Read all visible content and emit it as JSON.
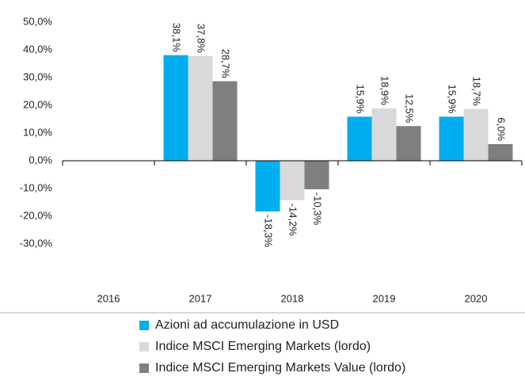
{
  "chart_data": {
    "type": "bar",
    "categories": [
      "2016",
      "2017",
      "2018",
      "2019",
      "2020"
    ],
    "series": [
      {
        "name": "Azioni ad accumulazione in USD",
        "color": "#00aeef",
        "values": [
          null,
          38.1,
          -18.3,
          15.9,
          15.9
        ],
        "value_labels": [
          null,
          "38,1%",
          "-18,3%",
          "15,9%",
          "15,9%"
        ]
      },
      {
        "name": "Indice MSCI Emerging Markets (lordo)",
        "color": "#d9d9d9",
        "values": [
          null,
          37.8,
          -14.2,
          18.9,
          18.7
        ],
        "value_labels": [
          null,
          "37,8%",
          "-14,2%",
          "18,9%",
          "18,7%"
        ]
      },
      {
        "name": "Indice MSCI Emerging Markets Value (lordo)",
        "color": "#7f7f7f",
        "values": [
          null,
          28.7,
          -10.3,
          12.5,
          6.0
        ],
        "value_labels": [
          null,
          "28,7%",
          "-10,3%",
          "12,5%",
          "6,0%"
        ]
      }
    ],
    "ylim": [
      -50,
      50
    ],
    "yticks": [
      {
        "value": 50,
        "label": "50,0%"
      },
      {
        "value": 40,
        "label": "40,0%"
      },
      {
        "value": 30,
        "label": "30,0%"
      },
      {
        "value": 20,
        "label": "20,0%"
      },
      {
        "value": 10,
        "label": "10,0%"
      },
      {
        "value": 0,
        "label": "0,0%"
      },
      {
        "value": -10,
        "label": "-10,0%"
      },
      {
        "value": -20,
        "label": "-20,0%"
      },
      {
        "value": -30,
        "label": "-30,0%"
      }
    ],
    "legend": "bottom"
  }
}
